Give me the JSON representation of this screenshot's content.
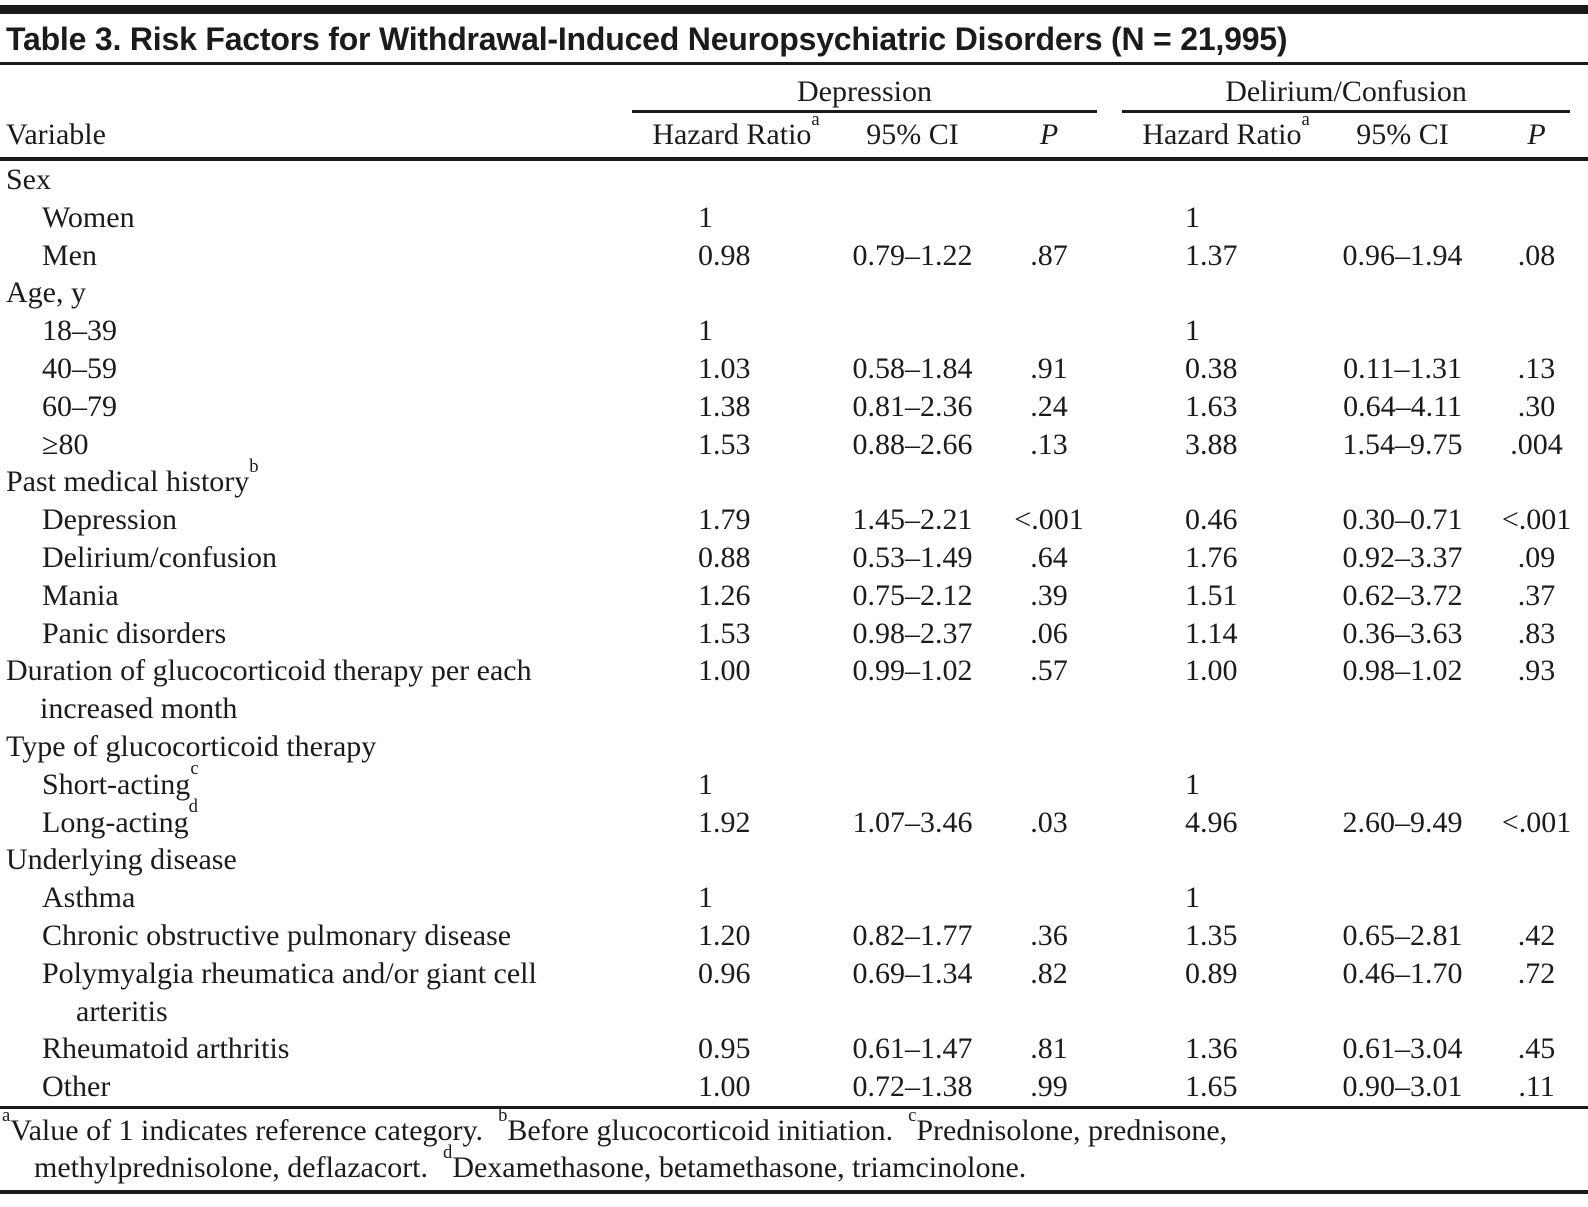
{
  "title": "Table 3. Risk Factors for Withdrawal-Induced Neuropsychiatric Disorders (N = 21,995)",
  "colors": {
    "text": "#1b1b1b",
    "rule": "#1b1b1b",
    "background": "#ffffff"
  },
  "columns": {
    "variable": "Variable",
    "group1": "Depression",
    "group2": "Delirium/Confusion",
    "hr": "Hazard Ratio",
    "hr_sup": "a",
    "ci": "95% CI",
    "p": "P"
  },
  "rows": [
    {
      "label": "Sex",
      "sup": "",
      "label2": "",
      "indent": 0,
      "hr1": "",
      "ci1": "",
      "p1": "",
      "hr2": "",
      "ci2": "",
      "p2": ""
    },
    {
      "label": "Women",
      "sup": "",
      "label2": "",
      "indent": 1,
      "hr1": "1",
      "ci1": "",
      "p1": "",
      "hr2": "1",
      "ci2": "",
      "p2": ""
    },
    {
      "label": "Men",
      "sup": "",
      "label2": "",
      "indent": 1,
      "hr1": "0.98",
      "ci1": "0.79–1.22",
      "p1": ".87",
      "hr2": "1.37",
      "ci2": "0.96–1.94",
      "p2": ".08"
    },
    {
      "label": "Age, y",
      "sup": "",
      "label2": "",
      "indent": 0,
      "hr1": "",
      "ci1": "",
      "p1": "",
      "hr2": "",
      "ci2": "",
      "p2": ""
    },
    {
      "label": "18–39",
      "sup": "",
      "label2": "",
      "indent": 1,
      "hr1": "1",
      "ci1": "",
      "p1": "",
      "hr2": "1",
      "ci2": "",
      "p2": ""
    },
    {
      "label": "40–59",
      "sup": "",
      "label2": "",
      "indent": 1,
      "hr1": "1.03",
      "ci1": "0.58–1.84",
      "p1": ".91",
      "hr2": "0.38",
      "ci2": "0.11–1.31",
      "p2": ".13"
    },
    {
      "label": "60–79",
      "sup": "",
      "label2": "",
      "indent": 1,
      "hr1": "1.38",
      "ci1": "0.81–2.36",
      "p1": ".24",
      "hr2": "1.63",
      "ci2": "0.64–4.11",
      "p2": ".30"
    },
    {
      "label": "≥80",
      "sup": "",
      "label2": "",
      "indent": 1,
      "hr1": "1.53",
      "ci1": "0.88–2.66",
      "p1": ".13",
      "hr2": "3.88",
      "ci2": "1.54–9.75",
      "p2": ".004"
    },
    {
      "label": "Past medical history",
      "sup": "b",
      "label2": "",
      "indent": 0,
      "hr1": "",
      "ci1": "",
      "p1": "",
      "hr2": "",
      "ci2": "",
      "p2": ""
    },
    {
      "label": "Depression",
      "sup": "",
      "label2": "",
      "indent": 1,
      "hr1": "1.79",
      "ci1": "1.45–2.21",
      "p1": "<.001",
      "hr2": "0.46",
      "ci2": "0.30–0.71",
      "p2": "<.001"
    },
    {
      "label": "Delirium/confusion",
      "sup": "",
      "label2": "",
      "indent": 1,
      "hr1": "0.88",
      "ci1": "0.53–1.49",
      "p1": ".64",
      "hr2": "1.76",
      "ci2": "0.92–3.37",
      "p2": ".09"
    },
    {
      "label": "Mania",
      "sup": "",
      "label2": "",
      "indent": 1,
      "hr1": "1.26",
      "ci1": "0.75–2.12",
      "p1": ".39",
      "hr2": "1.51",
      "ci2": "0.62–3.72",
      "p2": ".37"
    },
    {
      "label": "Panic disorders",
      "sup": "",
      "label2": "",
      "indent": 1,
      "hr1": "1.53",
      "ci1": "0.98–2.37",
      "p1": ".06",
      "hr2": "1.14",
      "ci2": "0.36–3.63",
      "p2": ".83"
    },
    {
      "label": "Duration of glucocorticoid therapy per each",
      "sup": "",
      "label2": "increased month",
      "indent": 0,
      "hr1": "1.00",
      "ci1": "0.99–1.02",
      "p1": ".57",
      "hr2": "1.00",
      "ci2": "0.98–1.02",
      "p2": ".93"
    },
    {
      "label": "Type of glucocorticoid therapy",
      "sup": "",
      "label2": "",
      "indent": 0,
      "hr1": "",
      "ci1": "",
      "p1": "",
      "hr2": "",
      "ci2": "",
      "p2": ""
    },
    {
      "label": "Short-acting",
      "sup": "c",
      "label2": "",
      "indent": 1,
      "hr1": "1",
      "ci1": "",
      "p1": "",
      "hr2": "1",
      "ci2": "",
      "p2": ""
    },
    {
      "label": "Long-acting",
      "sup": "d",
      "label2": "",
      "indent": 1,
      "hr1": "1.92",
      "ci1": "1.07–3.46",
      "p1": ".03",
      "hr2": "4.96",
      "ci2": "2.60–9.49",
      "p2": "<.001"
    },
    {
      "label": "Underlying disease",
      "sup": "",
      "label2": "",
      "indent": 0,
      "hr1": "",
      "ci1": "",
      "p1": "",
      "hr2": "",
      "ci2": "",
      "p2": ""
    },
    {
      "label": "Asthma",
      "sup": "",
      "label2": "",
      "indent": 1,
      "hr1": "1",
      "ci1": "",
      "p1": "",
      "hr2": "1",
      "ci2": "",
      "p2": ""
    },
    {
      "label": "Chronic obstructive pulmonary disease",
      "sup": "",
      "label2": "",
      "indent": 1,
      "hr1": "1.20",
      "ci1": "0.82–1.77",
      "p1": ".36",
      "hr2": "1.35",
      "ci2": "0.65–2.81",
      "p2": ".42"
    },
    {
      "label": "Polymyalgia rheumatica and/or giant cell",
      "sup": "",
      "label2": "arteritis",
      "indent": 1,
      "hr1": "0.96",
      "ci1": "0.69–1.34",
      "p1": ".82",
      "hr2": "0.89",
      "ci2": "0.46–1.70",
      "p2": ".72"
    },
    {
      "label": "Rheumatoid arthritis",
      "sup": "",
      "label2": "",
      "indent": 1,
      "hr1": "0.95",
      "ci1": "0.61–1.47",
      "p1": ".81",
      "hr2": "1.36",
      "ci2": "0.61–3.04",
      "p2": ".45"
    },
    {
      "label": "Other",
      "sup": "",
      "label2": "",
      "indent": 1,
      "hr1": "1.00",
      "ci1": "0.72–1.38",
      "p1": ".99",
      "hr2": "1.65",
      "ci2": "0.90–3.01",
      "p2": ".11"
    }
  ],
  "footnotes": {
    "line1": [
      {
        "sup": "a",
        "text": "Value of 1 indicates reference category."
      },
      {
        "sup": "b",
        "text": "Before glucocorticoid initiation."
      },
      {
        "sup": "c",
        "text": "Prednisolone, prednisone,"
      }
    ],
    "line2": [
      {
        "sup": "",
        "text": "methylprednisolone, deflazacort."
      },
      {
        "sup": "d",
        "text": "Dexamethasone, betamethasone, triamcinolone."
      }
    ]
  }
}
